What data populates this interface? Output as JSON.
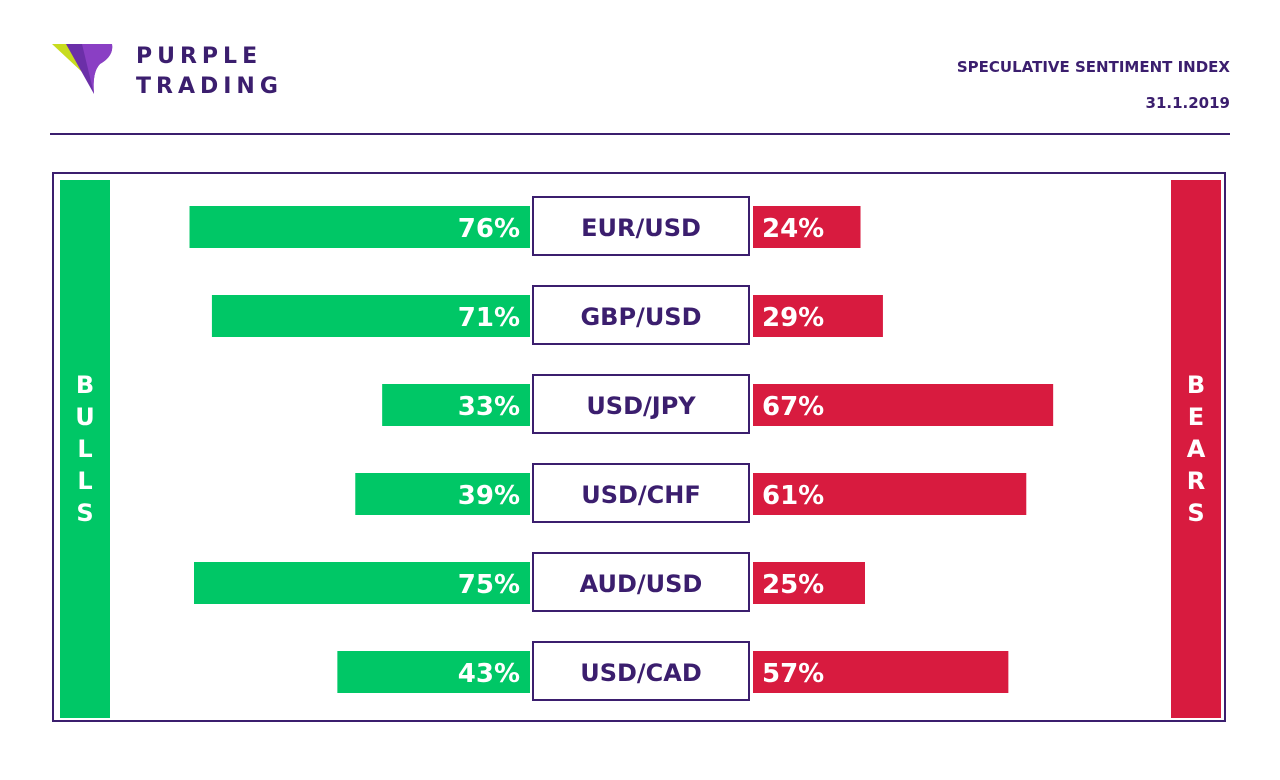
{
  "brand": {
    "line1": "PURPLE",
    "line2": "TRADING"
  },
  "title": "SPECULATIVE SENTIMENT INDEX",
  "date": "31.1.2019",
  "side_labels": {
    "left": "BULLS",
    "right": "BEARS"
  },
  "colors": {
    "bulls": "#00c766",
    "bears": "#d81b3f",
    "brand": "#3b1e6e"
  },
  "chart_data": {
    "type": "bar",
    "orientation": "horizontal-diverging",
    "categories": [
      "EUR/USD",
      "GBP/USD",
      "USD/JPY",
      "USD/CHF",
      "AUD/USD",
      "USD/CAD"
    ],
    "series": [
      {
        "name": "BULLS",
        "values": [
          76,
          71,
          33,
          39,
          75,
          43
        ]
      },
      {
        "name": "BEARS",
        "values": [
          24,
          29,
          67,
          61,
          25,
          57
        ]
      }
    ],
    "unit": "%"
  }
}
